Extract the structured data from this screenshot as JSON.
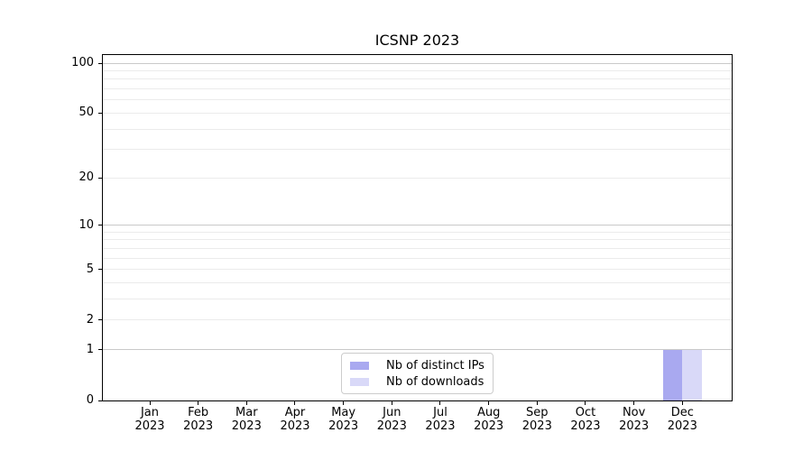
{
  "chart_data": {
    "type": "bar",
    "title": "ICSNP 2023",
    "year": "2023",
    "months": [
      "Jan",
      "Feb",
      "Mar",
      "Apr",
      "May",
      "Jun",
      "Jul",
      "Aug",
      "Sep",
      "Oct",
      "Nov",
      "Dec"
    ],
    "categories": [
      "Jan 2023",
      "Feb 2023",
      "Mar 2023",
      "Apr 2023",
      "May 2023",
      "Jun 2023",
      "Jul 2023",
      "Aug 2023",
      "Sep 2023",
      "Oct 2023",
      "Nov 2023",
      "Dec 2023"
    ],
    "series": [
      {
        "name": "Nb of distinct IPs",
        "color": "#a9a9f0",
        "values": [
          0,
          0,
          0,
          0,
          0,
          0,
          0,
          0,
          0,
          0,
          0,
          1
        ]
      },
      {
        "name": "Nb of downloads",
        "color": "#d9d9f8",
        "values": [
          0,
          0,
          0,
          0,
          0,
          0,
          0,
          0,
          0,
          0,
          0,
          1
        ]
      }
    ],
    "xlabel": "",
    "ylabel": "",
    "yscale": "log1p",
    "ylim": [
      0,
      112
    ],
    "yticks": [
      0,
      1,
      2,
      5,
      10,
      20,
      50,
      100
    ],
    "major_gridlines": [
      1,
      10,
      100
    ],
    "minor_gridlines": [
      2,
      3,
      4,
      5,
      6,
      7,
      8,
      9,
      20,
      30,
      40,
      50,
      60,
      70,
      80,
      90
    ],
    "grid": true,
    "legend_position": "lower center"
  }
}
